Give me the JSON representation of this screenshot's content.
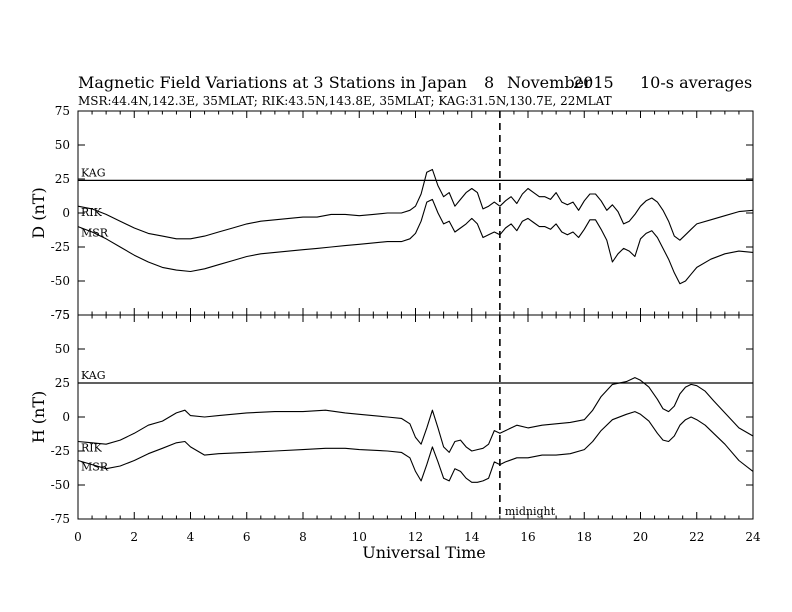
{
  "title": {
    "main": "Magnetic Field Variations at 3 Stations in Japan",
    "day": "8",
    "month": "November",
    "year": "2015",
    "averaging": "10-s averages"
  },
  "subtitle": "MSR:44.4N,142.3E, 35MLAT;  RIK:43.5N,143.8E, 35MLAT;  KAG:31.5N,130.7E, 22MLAT",
  "marker_label": "midnight",
  "chart_data": [
    {
      "type": "line",
      "panel": "D",
      "ylabel": "D (nT)",
      "xlabel": "",
      "xlim": [
        0,
        24
      ],
      "ylim": [
        -75,
        75
      ],
      "yticks": [
        75,
        50,
        25,
        0,
        -25,
        -50,
        -75
      ],
      "xticks": [
        0,
        2,
        4,
        6,
        8,
        10,
        12,
        14,
        16,
        18,
        20,
        22,
        24
      ],
      "vertical_marker_x": 15,
      "series": [
        {
          "name": "KAG",
          "x": [
            0,
            24
          ],
          "values": [
            24,
            24
          ]
        },
        {
          "name": "RIK",
          "x": [
            0,
            0.5,
            1,
            1.5,
            2,
            2.5,
            3,
            3.5,
            4,
            4.5,
            5,
            5.5,
            6,
            6.5,
            7,
            7.5,
            8,
            8.5,
            9,
            9.5,
            10,
            10.5,
            11,
            11.5,
            11.8,
            12,
            12.2,
            12.4,
            12.6,
            12.8,
            13,
            13.2,
            13.4,
            13.6,
            13.8,
            14,
            14.2,
            14.4,
            14.6,
            14.8,
            15,
            15.2,
            15.4,
            15.6,
            15.8,
            16,
            16.2,
            16.4,
            16.6,
            16.8,
            17,
            17.2,
            17.4,
            17.6,
            17.8,
            18,
            18.2,
            18.4,
            18.6,
            18.8,
            19,
            19.2,
            19.4,
            19.6,
            19.8,
            20,
            20.2,
            20.4,
            20.6,
            20.8,
            21,
            21.2,
            21.4,
            21.6,
            21.8,
            22,
            22.5,
            23,
            23.5,
            24
          ],
          "values": [
            5,
            3,
            -1,
            -6,
            -11,
            -15,
            -17,
            -19,
            -19,
            -17,
            -14,
            -11,
            -8,
            -6,
            -5,
            -4,
            -3,
            -3,
            -1,
            -1,
            -2,
            -1,
            0,
            0,
            2,
            5,
            14,
            30,
            32,
            20,
            12,
            15,
            5,
            10,
            15,
            18,
            15,
            3,
            5,
            8,
            5,
            9,
            12,
            7,
            14,
            18,
            15,
            12,
            12,
            10,
            15,
            8,
            6,
            8,
            2,
            9,
            14,
            14,
            9,
            2,
            6,
            1,
            -8,
            -6,
            -1,
            5,
            9,
            11,
            8,
            2,
            -6,
            -17,
            -20,
            -16,
            -12,
            -8,
            -5,
            -2,
            1,
            2
          ]
        },
        {
          "name": "MSR",
          "x": [
            0,
            0.5,
            1,
            1.5,
            2,
            2.5,
            3,
            3.5,
            4,
            4.5,
            5,
            5.5,
            6,
            6.5,
            7,
            7.5,
            8,
            8.5,
            9,
            9.5,
            10,
            10.5,
            11,
            11.5,
            11.8,
            12,
            12.2,
            12.4,
            12.6,
            12.8,
            13,
            13.2,
            13.4,
            13.6,
            13.8,
            14,
            14.2,
            14.4,
            14.6,
            14.8,
            15,
            15.2,
            15.4,
            15.6,
            15.8,
            16,
            16.2,
            16.4,
            16.6,
            16.8,
            17,
            17.2,
            17.4,
            17.6,
            17.8,
            18,
            18.2,
            18.4,
            18.6,
            18.8,
            19,
            19.2,
            19.4,
            19.6,
            19.8,
            20,
            20.2,
            20.4,
            20.6,
            20.8,
            21,
            21.2,
            21.4,
            21.6,
            21.8,
            22,
            22.5,
            23,
            23.5,
            24
          ],
          "values": [
            -10,
            -14,
            -19,
            -25,
            -31,
            -36,
            -40,
            -42,
            -43,
            -41,
            -38,
            -35,
            -32,
            -30,
            -29,
            -28,
            -27,
            -26,
            -25,
            -24,
            -23,
            -22,
            -21,
            -21,
            -19,
            -15,
            -6,
            8,
            10,
            0,
            -8,
            -6,
            -14,
            -11,
            -8,
            -4,
            -8,
            -18,
            -16,
            -14,
            -16,
            -11,
            -8,
            -13,
            -6,
            -4,
            -7,
            -10,
            -10,
            -12,
            -8,
            -14,
            -16,
            -14,
            -18,
            -12,
            -5,
            -5,
            -12,
            -20,
            -36,
            -30,
            -26,
            -28,
            -32,
            -19,
            -15,
            -13,
            -18,
            -26,
            -34,
            -44,
            -52,
            -50,
            -45,
            -40,
            -34,
            -30,
            -28,
            -29
          ]
        }
      ]
    },
    {
      "type": "line",
      "panel": "H",
      "ylabel": "H (nT)",
      "xlabel": "Universal Time",
      "xlim": [
        0,
        24
      ],
      "ylim": [
        -75,
        75
      ],
      "yticks": [
        75,
        50,
        25,
        0,
        -25,
        -50,
        -75
      ],
      "xticks": [
        0,
        2,
        4,
        6,
        8,
        10,
        12,
        14,
        16,
        18,
        20,
        22,
        24
      ],
      "vertical_marker_x": 15,
      "series": [
        {
          "name": "KAG",
          "x": [
            0,
            24
          ],
          "values": [
            25,
            25
          ]
        },
        {
          "name": "RIK",
          "x": [
            0,
            0.5,
            1,
            1.5,
            2,
            2.5,
            3,
            3.5,
            3.8,
            4,
            4.5,
            5,
            6,
            7,
            8,
            8.8,
            9.5,
            10,
            11,
            11.5,
            11.8,
            12,
            12.2,
            12.4,
            12.6,
            12.8,
            13,
            13.2,
            13.4,
            13.6,
            13.8,
            14,
            14.2,
            14.4,
            14.6,
            14.8,
            15,
            15.2,
            15.6,
            16,
            16.5,
            17,
            17.5,
            18,
            18.3,
            18.6,
            19,
            19.5,
            19.8,
            20,
            20.3,
            20.6,
            20.8,
            21,
            21.2,
            21.4,
            21.6,
            21.8,
            22,
            22.3,
            22.6,
            23,
            23.5,
            24
          ],
          "values": [
            -18,
            -19,
            -20,
            -17,
            -12,
            -6,
            -3,
            3,
            5,
            1,
            0,
            1,
            3,
            4,
            4,
            5,
            3,
            2,
            0,
            -1,
            -5,
            -15,
            -20,
            -8,
            5,
            -8,
            -22,
            -26,
            -18,
            -17,
            -22,
            -25,
            -24,
            -23,
            -20,
            -10,
            -12,
            -10,
            -6,
            -8,
            -6,
            -5,
            -4,
            -2,
            5,
            15,
            24,
            26,
            29,
            27,
            22,
            13,
            6,
            4,
            8,
            17,
            22,
            24,
            23,
            19,
            12,
            3,
            -8,
            -14
          ]
        },
        {
          "name": "MSR",
          "x": [
            0,
            0.5,
            1,
            1.5,
            2,
            2.5,
            3,
            3.5,
            3.8,
            4,
            4.5,
            5,
            6,
            7,
            8,
            8.8,
            9.5,
            10,
            11,
            11.5,
            11.8,
            12,
            12.2,
            12.4,
            12.6,
            12.8,
            13,
            13.2,
            13.4,
            13.6,
            13.8,
            14,
            14.2,
            14.4,
            14.6,
            14.8,
            15,
            15.2,
            15.6,
            16,
            16.5,
            17,
            17.5,
            18,
            18.3,
            18.6,
            19,
            19.5,
            19.8,
            20,
            20.3,
            20.6,
            20.8,
            21,
            21.2,
            21.4,
            21.6,
            21.8,
            22,
            22.3,
            22.6,
            23,
            23.5,
            24
          ],
          "values": [
            -32,
            -35,
            -38,
            -36,
            -32,
            -27,
            -23,
            -19,
            -18,
            -22,
            -28,
            -27,
            -26,
            -25,
            -24,
            -23,
            -23,
            -24,
            -25,
            -26,
            -30,
            -40,
            -47,
            -35,
            -22,
            -33,
            -45,
            -47,
            -38,
            -40,
            -45,
            -48,
            -48,
            -47,
            -45,
            -33,
            -35,
            -33,
            -30,
            -30,
            -28,
            -28,
            -27,
            -24,
            -18,
            -10,
            -2,
            2,
            4,
            2,
            -3,
            -12,
            -17,
            -18,
            -14,
            -6,
            -2,
            0,
            -2,
            -6,
            -12,
            -20,
            -32,
            -40
          ]
        }
      ]
    }
  ]
}
